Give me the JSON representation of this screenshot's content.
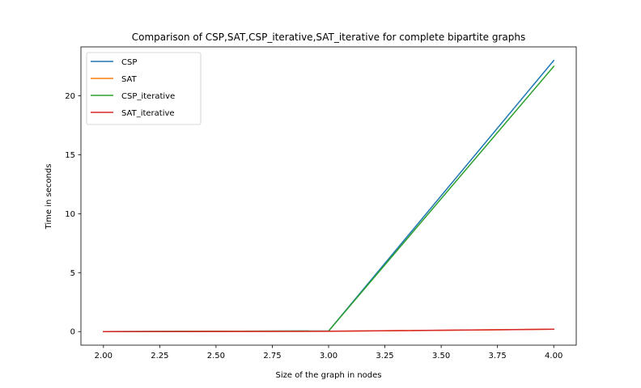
{
  "chart_data": {
    "type": "line",
    "title": "Comparison of CSP,SAT,CSP_iterative,SAT_iterative for complete bipartite graphs",
    "xlabel": "Size of the graph in nodes",
    "ylabel": "Time in seconds",
    "xlim": [
      1.9,
      4.1
    ],
    "ylim": [
      -1.15,
      24.15
    ],
    "x_ticks": [
      "2.00",
      "2.25",
      "2.50",
      "2.75",
      "3.00",
      "3.25",
      "3.50",
      "3.75",
      "4.00"
    ],
    "x_tick_values": [
      2.0,
      2.25,
      2.5,
      2.75,
      3.0,
      3.25,
      3.5,
      3.75,
      4.0
    ],
    "y_ticks": [
      "0",
      "5",
      "10",
      "15",
      "20"
    ],
    "y_tick_values": [
      0,
      5,
      10,
      15,
      20
    ],
    "grid": false,
    "legend_position": "top-left",
    "x": [
      2,
      3,
      4
    ],
    "series": [
      {
        "name": "CSP",
        "color": "#1f77b4",
        "values": [
          0.0,
          0.05,
          23.0
        ]
      },
      {
        "name": "SAT",
        "color": "#ff7f0e",
        "values": [
          0.0,
          0.02,
          0.2
        ]
      },
      {
        "name": "CSP_iterative",
        "color": "#2ca02c",
        "values": [
          0.0,
          0.05,
          22.5
        ]
      },
      {
        "name": "SAT_iterative",
        "color": "#d62728",
        "values": [
          0.0,
          0.03,
          0.2
        ]
      }
    ]
  }
}
